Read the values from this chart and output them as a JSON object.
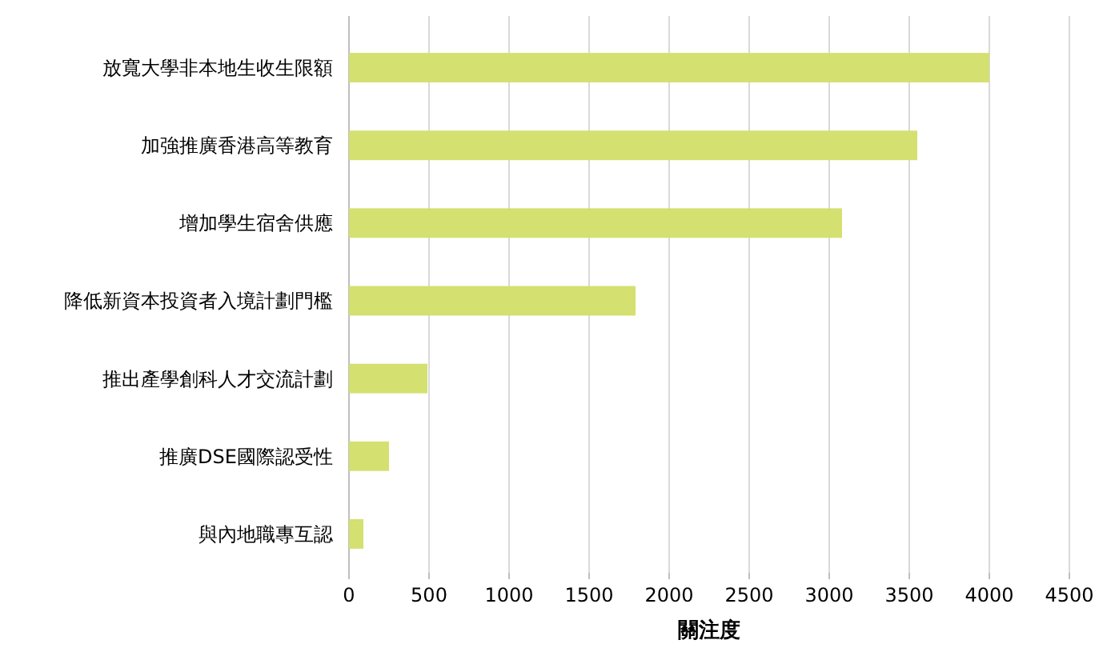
{
  "chart_data": {
    "type": "bar",
    "orientation": "horizontal",
    "xlabel": "關注度",
    "categories": [
      "放寬大學非本地生收生限額",
      "加強推廣香港高等教育",
      "增加學生宿舍供應",
      "降低新資本投資者入境計劃門檻",
      "推出產學創科人才交流計劃",
      "推廣DSE國際認受性",
      "與內地職專互認"
    ],
    "values": [
      4000,
      3550,
      3080,
      1790,
      490,
      250,
      90
    ],
    "color": "#d4e070",
    "xlim": [
      0,
      4500
    ],
    "xticks": [
      0,
      500,
      1000,
      1500,
      2000,
      2500,
      3000,
      3500,
      4000,
      4500
    ],
    "grid": "x"
  }
}
